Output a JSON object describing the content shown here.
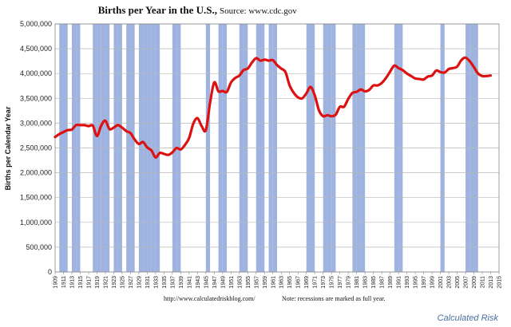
{
  "chart_data": {
    "type": "line",
    "title": "Births per Year in the U.S.,",
    "subtitle": "Source: www.cdc.gov",
    "ylabel": "Births per Calendar Year",
    "ylim": [
      0,
      5000000
    ],
    "yticks": [
      0,
      500000,
      1000000,
      1500000,
      2000000,
      2500000,
      3000000,
      3500000,
      4000000,
      4500000,
      5000000
    ],
    "ytick_labels": [
      "0",
      "500,000",
      "1,000,000",
      "1,500,000",
      "2,000,000",
      "2,500,000",
      "3,000,000",
      "3,500,000",
      "4,000,000",
      "4,500,000",
      "5,000,000"
    ],
    "xlim": [
      1909,
      2015
    ],
    "xtick_labels": [
      "1909",
      "1911",
      "1913",
      "1915",
      "1917",
      "1919",
      "1921",
      "1923",
      "1925",
      "1927",
      "1929",
      "1931",
      "1933",
      "1935",
      "1937",
      "1939",
      "1941",
      "1943",
      "1945",
      "1947",
      "1949",
      "1951",
      "1953",
      "1955",
      "1957",
      "1959",
      "1961",
      "1963",
      "1965",
      "1967",
      "1969",
      "1971",
      "1973",
      "1975",
      "1977",
      "1979",
      "1981",
      "1983",
      "1985",
      "1987",
      "1989",
      "1991",
      "1993",
      "1995",
      "1997",
      "1999",
      "2001",
      "2003",
      "2005",
      "2007",
      "2009",
      "2011",
      "2013",
      "2015"
    ],
    "grid": true,
    "line_color": "#dd1111",
    "recession_color": "#9fb3e0",
    "recession_years": [
      1910,
      1911,
      1913,
      1914,
      1918,
      1919,
      1920,
      1921,
      1923,
      1924,
      1926,
      1927,
      1929,
      1930,
      1931,
      1932,
      1933,
      1937,
      1938,
      1945,
      1948,
      1949,
      1953,
      1954,
      1957,
      1958,
      1960,
      1961,
      1969,
      1970,
      1973,
      1974,
      1975,
      1980,
      1981,
      1982,
      1990,
      1991,
      2001,
      2007,
      2008,
      2009
    ],
    "series": [
      {
        "x": [
          1909,
          1910,
          1911,
          1912,
          1913,
          1914,
          1915,
          1916,
          1917,
          1918,
          1919,
          1920,
          1921,
          1922,
          1923,
          1924,
          1925,
          1926,
          1927,
          1928,
          1929,
          1930,
          1931,
          1932,
          1933,
          1934,
          1935,
          1936,
          1937,
          1938,
          1939,
          1940,
          1941,
          1942,
          1943,
          1944,
          1945,
          1946,
          1947,
          1948,
          1949,
          1950,
          1951,
          1952,
          1953,
          1954,
          1955,
          1956,
          1957,
          1958,
          1959,
          1960,
          1961,
          1962,
          1963,
          1964,
          1965,
          1966,
          1967,
          1968,
          1969,
          1970,
          1971,
          1972,
          1973,
          1974,
          1975,
          1976,
          1977,
          1978,
          1979,
          1980,
          1981,
          1982,
          1983,
          1984,
          1985,
          1986,
          1987,
          1988,
          1989,
          1990,
          1991,
          1992,
          1993,
          1994,
          1995,
          1996,
          1997,
          1998,
          1999,
          2000,
          2001,
          2002,
          2003,
          2004,
          2005,
          2006,
          2007,
          2008,
          2009,
          2010,
          2011,
          2012,
          2013
        ],
        "values": [
          2720000,
          2780000,
          2820000,
          2860000,
          2870000,
          2960000,
          2960000,
          2960000,
          2940000,
          2950000,
          2740000,
          2950000,
          3050000,
          2880000,
          2910000,
          2960000,
          2910000,
          2840000,
          2800000,
          2670000,
          2580000,
          2620000,
          2510000,
          2450000,
          2310000,
          2400000,
          2380000,
          2360000,
          2410000,
          2500000,
          2470000,
          2560000,
          2700000,
          2990000,
          3100000,
          2940000,
          2860000,
          3410000,
          3820000,
          3640000,
          3650000,
          3630000,
          3820000,
          3910000,
          3960000,
          4070000,
          4100000,
          4220000,
          4310000,
          4260000,
          4280000,
          4260000,
          4270000,
          4170000,
          4100000,
          4030000,
          3760000,
          3610000,
          3520000,
          3500000,
          3600000,
          3730000,
          3560000,
          3260000,
          3140000,
          3160000,
          3140000,
          3170000,
          3330000,
          3330000,
          3490000,
          3610000,
          3630000,
          3680000,
          3640000,
          3670000,
          3760000,
          3760000,
          3810000,
          3910000,
          4040000,
          4160000,
          4110000,
          4070000,
          4000000,
          3950000,
          3900000,
          3890000,
          3880000,
          3940000,
          3960000,
          4060000,
          4030000,
          4020000,
          4090000,
          4110000,
          4140000,
          4270000,
          4320000,
          4250000,
          4130000,
          4000000,
          3950000,
          3950000,
          3960000
        ]
      }
    ],
    "footnote_left": "http://www.calculatedriskblog.com/",
    "footnote_right": "Note:  recessions are marked  as full year.",
    "credit": "Calculated Risk"
  }
}
